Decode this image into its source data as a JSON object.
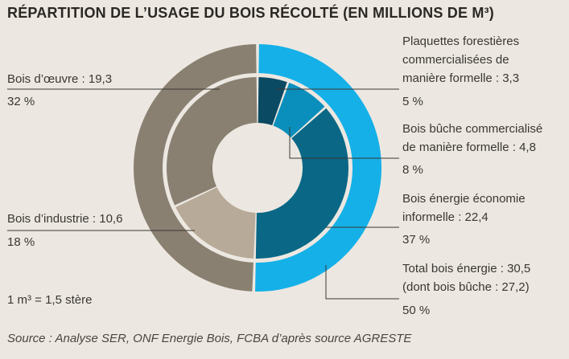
{
  "title": "RÉPARTITION DE L’USAGE DU BOIS RÉCOLTÉ (EN MILLIONS DE M³)",
  "note": "1 m³ = 1,5 stère",
  "source": "Source : Analyse SER, ONF Energie Bois, FCBA d’après source AGRESTE",
  "colors": {
    "background": "#ece8e1",
    "oeuvre": "#8a8072",
    "industrie": "#b7aa98",
    "plaquettes": "#0b4a63",
    "buche": "#0a8fbd",
    "energie_informelle": "#0a6786",
    "total_energie": "#15b0e8"
  },
  "labels": {
    "oeuvre": {
      "line1": "Bois d’œuvre : 19,3",
      "pct": "32 %"
    },
    "industrie": {
      "line1": "Bois d’industrie : 10,6",
      "pct": "18 %"
    },
    "plaquettes": {
      "line1": "Plaquettes forestières",
      "line2": "commercialisées de",
      "line3": "manière formelle : 3,3",
      "pct": "5 %"
    },
    "buche": {
      "line1": "Bois bûche commercialisé",
      "line2": "de manière formelle : 4,8",
      "pct": "8 %"
    },
    "informelle": {
      "line1": "Bois énergie économie",
      "line2": "informelle : 22,4",
      "pct": "37 %"
    },
    "total": {
      "line1": "Total bois énergie : 30,5",
      "line2": "(dont bois bûche : 27,2)",
      "pct": "50 %"
    }
  },
  "chart_data": {
    "type": "pie",
    "variant": "nested-donut",
    "title": "RÉPARTITION DE L’USAGE DU BOIS RÉCOLTÉ (EN MILLIONS DE M³)",
    "unit": "millions de m³",
    "outer_ring": [
      {
        "name": "Bois d’œuvre + Bois d’industrie",
        "value": 29.9,
        "color": "#8a8072"
      },
      {
        "name": "Total bois énergie",
        "value": 30.5,
        "percent": 50,
        "color": "#15b0e8"
      }
    ],
    "inner_ring": [
      {
        "name": "Plaquettes forestières commercialisées de manière formelle",
        "value": 3.3,
        "percent": 5,
        "color": "#0b4a63"
      },
      {
        "name": "Bois bûche commercialisé de manière formelle",
        "value": 4.8,
        "percent": 8,
        "color": "#0a8fbd"
      },
      {
        "name": "Bois énergie économie informelle",
        "value": 22.4,
        "percent": 37,
        "color": "#0a6786"
      },
      {
        "name": "Bois d’industrie",
        "value": 10.6,
        "percent": 18,
        "color": "#b7aa98"
      },
      {
        "name": "Bois d’œuvre",
        "value": 19.3,
        "percent": 32,
        "color": "#8a8072"
      }
    ]
  }
}
